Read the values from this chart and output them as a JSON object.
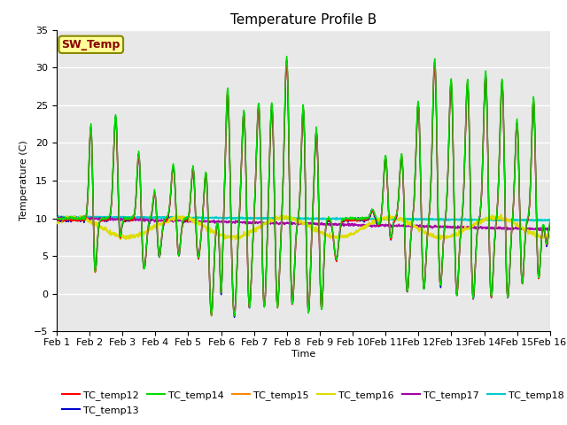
{
  "title": "Temperature Profile B",
  "xlabel": "Time",
  "ylabel": "Temperature (C)",
  "ylim": [
    -5,
    35
  ],
  "xlim_days": 15,
  "x_tick_labels": [
    "Feb 1",
    "Feb 2",
    "Feb 3",
    "Feb 4",
    "Feb 5",
    "Feb 6",
    "Feb 7",
    "Feb 8",
    "Feb 9",
    "Feb 10",
    "Feb 11",
    "Feb 12",
    "Feb 13",
    "Feb 14",
    "Feb 15",
    "Feb 16"
  ],
  "series_colors": {
    "TC_temp12": "#ff0000",
    "TC_temp13": "#0000cd",
    "TC_temp14": "#00dd00",
    "TC_temp15": "#ff8800",
    "TC_temp16": "#dddd00",
    "TC_temp17": "#aa00aa",
    "TC_temp18": "#00cccc"
  },
  "sw_temp_label": "SW_Temp",
  "sw_temp_box_facecolor": "#ffff99",
  "sw_temp_box_edgecolor": "#888800",
  "sw_temp_text_color": "#880000",
  "background_color": "#e8e8e8",
  "grid_color": "#ffffff",
  "title_fontsize": 11,
  "axis_fontsize": 8,
  "legend_fontsize": 8,
  "tick_fontsize": 8
}
